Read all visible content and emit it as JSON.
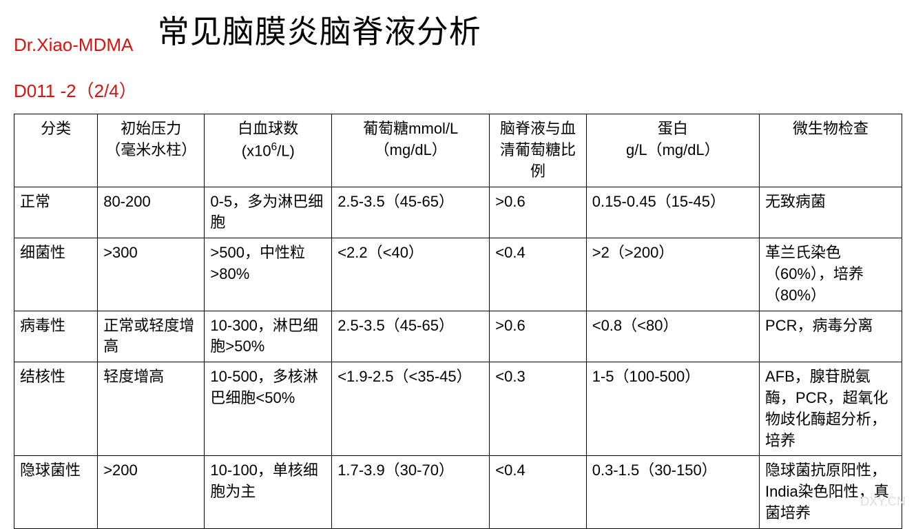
{
  "header": {
    "tag_line1": "Dr.Xiao-MDMA",
    "tag_line2": "D011 -2（2/4）",
    "title": "常见脑膜炎脑脊液分析"
  },
  "table": {
    "columns": [
      "分类",
      "初始压力（毫米水柱）",
      "白血球数 (x10⁶/L)",
      "葡萄糖mmol/L（mg/dL）",
      "脑脊液与血清葡萄糖比例",
      "蛋白 g/L（mg/dL）",
      "微生物检查"
    ],
    "col_html": {
      "c2": "白血球数<br>(x10<sup>6</sup>/L)",
      "c0": "分类",
      "c1": "初始压力<br>（毫米水柱）",
      "c3": "葡萄糖mmol/L<br>（mg/dL）",
      "c4": "脑脊液与血清葡萄糖比例",
      "c5": "蛋白<br>g/L（mg/dL）",
      "c6": "微生物检查"
    },
    "rows": [
      {
        "c0": "正常",
        "c1": "80-200",
        "c2": "0-5，多为淋巴细胞",
        "c3": "2.5-3.5（45-65）",
        "c4": ">0.6",
        "c5": "0.15-0.45（15-45）",
        "c6": "无致病菌"
      },
      {
        "c0": "细菌性",
        "c1": ">300",
        "c2": ">500，中性粒>80%",
        "c3": "<2.2（<40）",
        "c4": "<0.4",
        "c5": ">2（>200）",
        "c6": "革兰氏染色（60%），培养（80%）"
      },
      {
        "c0": "病毒性",
        "c1": "正常或轻度增高",
        "c2": "10-300，淋巴细胞>50%",
        "c3": "2.5-3.5（45-65）",
        "c4": ">0.6",
        "c5": "<0.8（<80）",
        "c6": "PCR，病毒分离"
      },
      {
        "c0": "结核性",
        "c1": "轻度增高",
        "c2": "10-500，多核淋巴细胞<50%",
        "c3": "<1.9-2.5（<35-45）",
        "c4": "<0.3",
        "c5": "1-5（100-500）",
        "c6": "AFB，腺苷脱氨酶，PCR，超氧化物歧化酶超分析，培养"
      },
      {
        "c0": "隐球菌性",
        "c1": ">200",
        "c2": "10-100，单核细胞为主",
        "c3": "1.7-3.9（30-70）",
        "c4": "<0.4",
        "c5": "0.3-1.5（30-150）",
        "c6": "隐球菌抗原阳性，India染色阳性，真菌培养"
      }
    ],
    "styling": {
      "border_color": "#000000",
      "border_width": 1.5,
      "cell_fontsize": 22,
      "header_align": "center",
      "body_align": "left",
      "text_color": "#000000",
      "background_color": "#ffffff",
      "tag_color": "#d9120f",
      "title_fontsize": 46,
      "tag_fontsize": 26,
      "col_widths_percent": [
        8.2,
        10.5,
        12.5,
        15.5,
        9.5,
        17,
        14
      ]
    }
  },
  "watermark": "DXY.CN"
}
